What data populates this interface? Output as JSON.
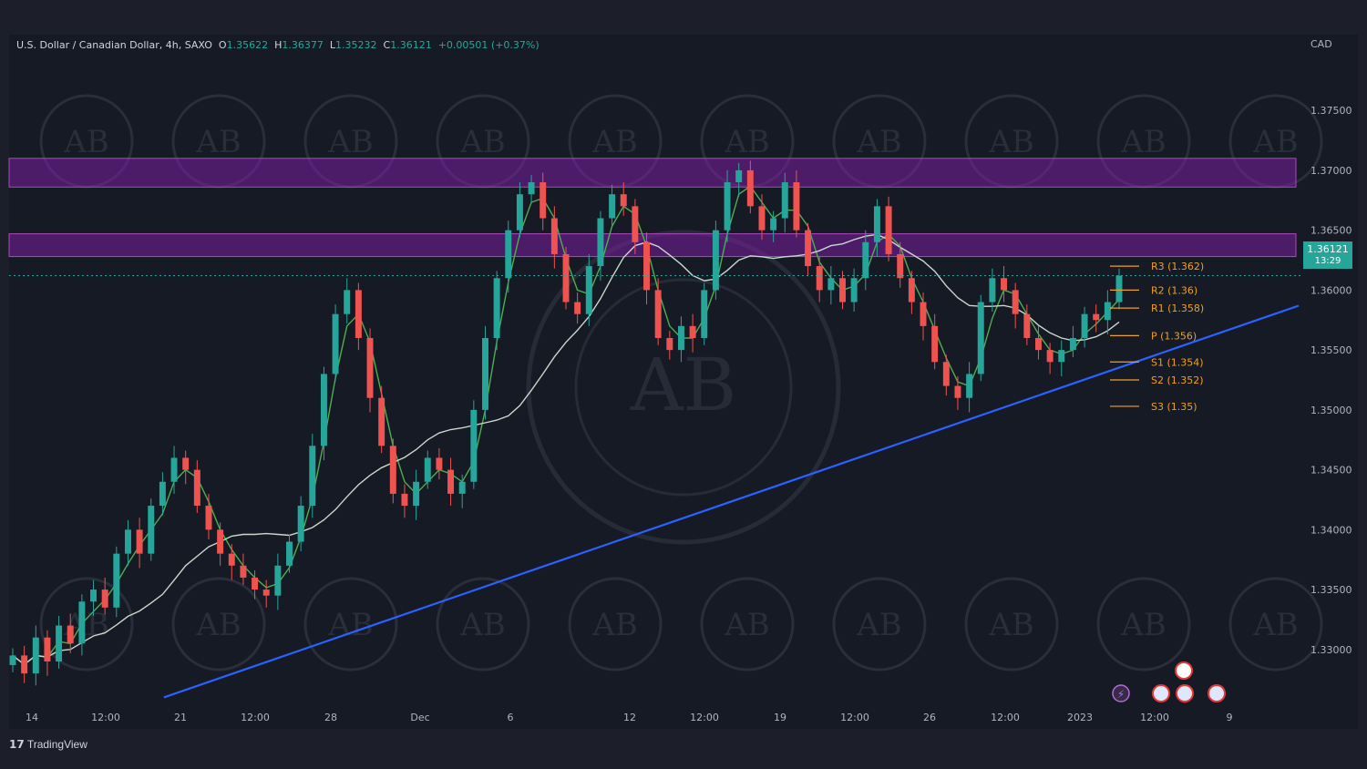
{
  "header": {
    "symbol": "U.S. Dollar / Canadian Dollar, 4h, SAXO",
    "o_label": "O",
    "o": "1.35622",
    "h_label": "H",
    "h": "1.36377",
    "l_label": "L",
    "l": "1.35232",
    "c_label": "C",
    "c": "1.36121",
    "change": "+0.00501 (+0.37%)"
  },
  "currency": "CAD",
  "current_price": "1.36121",
  "countdown": "13:29",
  "branding": {
    "name": "TradingView",
    "watermark_text": "AB"
  },
  "colors": {
    "background": "#161a25",
    "up": "#26a69a",
    "down": "#ef5350",
    "zone": "#7b1fa2",
    "trendline": "#2962ff",
    "pivot": "#f0a020",
    "ma_fast": "#4caf50",
    "ma_slow": "#c8d8cc"
  },
  "chart_data": {
    "type": "candlestick",
    "y_ticks": [
      "1.37500",
      "1.37000",
      "1.36500",
      "1.36000",
      "1.35500",
      "1.35000",
      "1.34500",
      "1.34000",
      "1.33500",
      "1.33000"
    ],
    "ylim": [
      1.3255,
      1.3795
    ],
    "x_ticks": [
      "14",
      "12:00",
      "21",
      "12:00",
      "28",
      "Dec",
      "6",
      "12",
      "12:00",
      "19",
      "12:00",
      "26",
      "12:00",
      "2023",
      "12:00",
      "9"
    ],
    "resistance_zones": [
      [
        1.3686,
        1.371
      ],
      [
        1.3628,
        1.3647
      ]
    ],
    "pivots": [
      {
        "label": "R3 (1.362)",
        "value": 1.362
      },
      {
        "label": "R2 (1.36)",
        "value": 1.36
      },
      {
        "label": "R1 (1.358)",
        "value": 1.3585
      },
      {
        "label": "P (1.356)",
        "value": 1.3562
      },
      {
        "label": "S1 (1.354)",
        "value": 1.354
      },
      {
        "label": "S2 (1.352)",
        "value": 1.3525
      },
      {
        "label": "S3 (1.35)",
        "value": 1.3503
      }
    ],
    "trendline": [
      [
        0.12,
        1.326
      ],
      [
        1.0,
        1.3587
      ]
    ],
    "closes": [
      1.3295,
      1.328,
      1.331,
      1.329,
      1.332,
      1.3305,
      1.334,
      1.335,
      1.3335,
      1.338,
      1.34,
      1.338,
      1.342,
      1.344,
      1.346,
      1.345,
      1.342,
      1.34,
      1.338,
      1.337,
      1.336,
      1.335,
      1.3345,
      1.337,
      1.339,
      1.342,
      1.347,
      1.353,
      1.358,
      1.36,
      1.356,
      1.351,
      1.347,
      1.343,
      1.342,
      1.344,
      1.346,
      1.345,
      1.343,
      1.344,
      1.35,
      1.356,
      1.361,
      1.365,
      1.368,
      1.369,
      1.366,
      1.363,
      1.359,
      1.358,
      1.362,
      1.366,
      1.368,
      1.367,
      1.364,
      1.36,
      1.356,
      1.355,
      1.357,
      1.356,
      1.36,
      1.365,
      1.369,
      1.37,
      1.367,
      1.365,
      1.366,
      1.369,
      1.365,
      1.362,
      1.36,
      1.361,
      1.359,
      1.361,
      1.364,
      1.367,
      1.363,
      1.361,
      1.359,
      1.357,
      1.354,
      1.352,
      1.351,
      1.353,
      1.359,
      1.361,
      1.36,
      1.358,
      1.356,
      1.355,
      1.354,
      1.355,
      1.356,
      1.358,
      1.3575,
      1.359,
      1.3612
    ]
  }
}
